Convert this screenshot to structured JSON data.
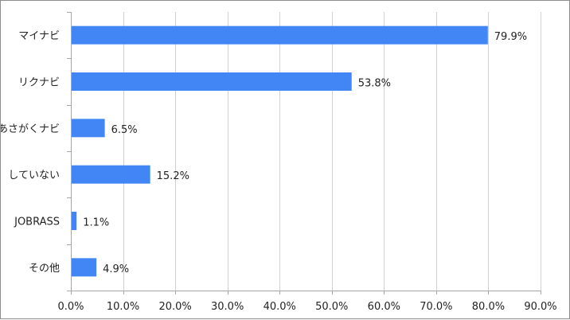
{
  "chart_data": {
    "type": "bar",
    "orientation": "horizontal",
    "categories": [
      "マイナビ",
      "リクナビ",
      "あさがくナビ",
      "していない",
      "JOBRASS",
      "その他"
    ],
    "values": [
      79.9,
      53.8,
      6.5,
      15.2,
      1.1,
      4.9
    ],
    "value_labels": [
      "79.9%",
      "53.8%",
      "6.5%",
      "15.2%",
      "1.1%",
      "4.9%"
    ],
    "xlim": [
      0,
      90
    ],
    "x_ticks": [
      0,
      10,
      20,
      30,
      40,
      50,
      60,
      70,
      80,
      90
    ],
    "x_tick_labels": [
      "0.0%",
      "10.0%",
      "20.0%",
      "30.0%",
      "40.0%",
      "50.0%",
      "60.0%",
      "70.0%",
      "80.0%",
      "90.0%"
    ],
    "grid": "vertical",
    "legend": "none",
    "bar_color": "#4285f4",
    "grid_color": "#d0d0d0",
    "axis_color": "#a6a6a6"
  }
}
